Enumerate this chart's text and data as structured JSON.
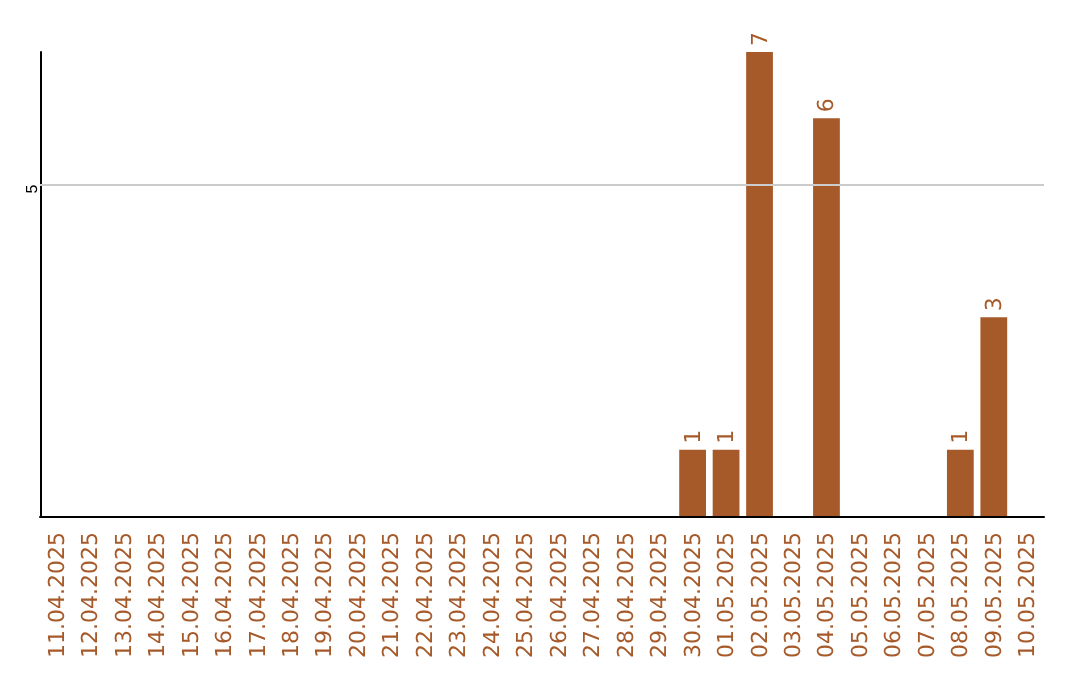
{
  "chart_data": {
    "type": "bar",
    "categories": [
      "11.04.2025",
      "12.04.2025",
      "13.04.2025",
      "14.04.2025",
      "15.04.2025",
      "16.04.2025",
      "17.04.2025",
      "18.04.2025",
      "19.04.2025",
      "20.04.2025",
      "21.04.2025",
      "22.04.2025",
      "23.04.2025",
      "24.04.2025",
      "25.04.2025",
      "26.04.2025",
      "27.04.2025",
      "28.04.2025",
      "29.04.2025",
      "30.04.2025",
      "01.05.2025",
      "02.05.2025",
      "03.05.2025",
      "04.05.2025",
      "05.05.2025",
      "06.05.2025",
      "07.05.2025",
      "08.05.2025",
      "09.05.2025",
      "10.05.2025"
    ],
    "values": [
      null,
      null,
      null,
      null,
      null,
      null,
      null,
      null,
      null,
      null,
      null,
      null,
      null,
      null,
      null,
      null,
      null,
      null,
      null,
      1,
      1,
      7,
      null,
      6,
      null,
      null,
      null,
      1,
      3,
      null
    ],
    "data_labels": true,
    "color": "#a65a2a",
    "ylim": [
      0,
      7
    ],
    "ref_lines": [
      {
        "axis": "y",
        "value": 5,
        "label": "5",
        "color": "#cccccc"
      }
    ]
  }
}
